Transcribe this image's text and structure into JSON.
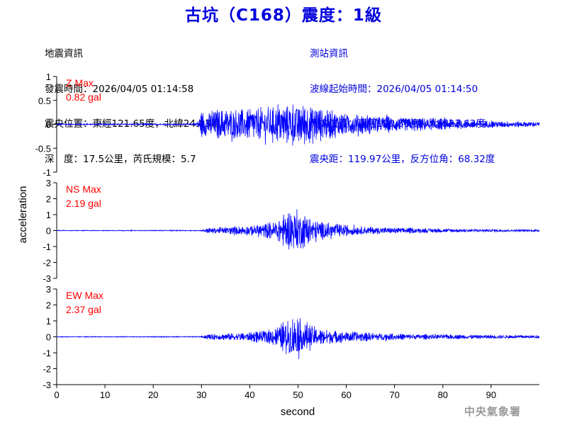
{
  "title": "古坑（C168）震度：1級",
  "quake_info": {
    "header": "地震資訊",
    "time": "發震時間：2026/04/05 01:14:58",
    "location": "震央位置：東經121.65度，北緯24.03度",
    "depth_magnitude": "深　度：17.5公里，芮氏規模：5.7"
  },
  "station_info": {
    "header": "測站資訊",
    "wave_start": "波線起始時間：2026/04/05 01:14:50",
    "location": "測站位置：東經120.55度，北緯23.63度",
    "distance": "震央距：119.97公里，反方位角：68.32度"
  },
  "agency": "中央氣象署",
  "colors": {
    "trace": "#0000ff",
    "max_label": "#ff0000",
    "title": "#0000dd",
    "station_text": "#0000dd"
  },
  "chart_data": {
    "type": "line",
    "xlabel": "second",
    "ylabel": "acceleration",
    "xlim": [
      0,
      100
    ],
    "x_ticks": [
      0,
      10,
      20,
      30,
      40,
      50,
      60,
      70,
      80,
      90
    ],
    "grid": false,
    "panels": [
      {
        "name": "Z",
        "max_label": "Z Max",
        "max_value": "0.82 gal",
        "ylim": [
          -1,
          1
        ],
        "y_ticks": [
          1,
          0.5,
          0,
          -0.5,
          -1
        ],
        "y_tick_labels": [
          "1",
          "0.5",
          "0",
          "-0.5",
          "-1"
        ],
        "envelope": [
          [
            0,
            0.02
          ],
          [
            28,
            0.02
          ],
          [
            29,
            0.05
          ],
          [
            30,
            0.35
          ],
          [
            33,
            0.42
          ],
          [
            38,
            0.45
          ],
          [
            45,
            0.5
          ],
          [
            50,
            0.62
          ],
          [
            52,
            0.6
          ],
          [
            55,
            0.45
          ],
          [
            60,
            0.32
          ],
          [
            70,
            0.22
          ],
          [
            80,
            0.16
          ],
          [
            90,
            0.1
          ],
          [
            100,
            0.07
          ]
        ]
      },
      {
        "name": "NS",
        "max_label": "NS Max",
        "max_value": "2.19 gal",
        "ylim": [
          -3,
          3
        ],
        "y_ticks": [
          3,
          2,
          1,
          0,
          -1,
          -2,
          -3
        ],
        "y_tick_labels": [
          "3",
          "2",
          "1",
          "0",
          "-1",
          "-2",
          "-3"
        ],
        "envelope": [
          [
            0,
            0.03
          ],
          [
            30,
            0.04
          ],
          [
            31,
            0.22
          ],
          [
            35,
            0.3
          ],
          [
            40,
            0.42
          ],
          [
            45,
            0.75
          ],
          [
            48,
            1.7
          ],
          [
            50,
            1.8
          ],
          [
            53,
            1.1
          ],
          [
            57,
            0.6
          ],
          [
            63,
            0.35
          ],
          [
            70,
            0.25
          ],
          [
            80,
            0.17
          ],
          [
            90,
            0.12
          ],
          [
            100,
            0.08
          ]
        ]
      },
      {
        "name": "EW",
        "max_label": "EW Max",
        "max_value": "2.37 gal",
        "ylim": [
          -3,
          3
        ],
        "y_ticks": [
          3,
          2,
          1,
          0,
          -1,
          -2,
          -3
        ],
        "y_tick_labels": [
          "3",
          "2",
          "1",
          "0",
          "-1",
          "-2",
          "-3"
        ],
        "envelope": [
          [
            0,
            0.03
          ],
          [
            30,
            0.04
          ],
          [
            31,
            0.22
          ],
          [
            35,
            0.3
          ],
          [
            40,
            0.38
          ],
          [
            44,
            0.6
          ],
          [
            47,
            1.2
          ],
          [
            49,
            2.0
          ],
          [
            51,
            1.4
          ],
          [
            54,
            0.8
          ],
          [
            58,
            0.55
          ],
          [
            65,
            0.35
          ],
          [
            75,
            0.22
          ],
          [
            85,
            0.18
          ],
          [
            100,
            0.12
          ]
        ]
      }
    ]
  }
}
